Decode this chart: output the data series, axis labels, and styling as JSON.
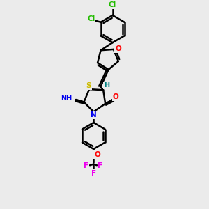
{
  "bg_color": "#ebebeb",
  "bond_color": "#000000",
  "bond_width": 1.8,
  "atom_colors": {
    "Cl": "#22bb00",
    "O": "#ff0000",
    "N": "#0000ee",
    "S": "#ccbb00",
    "H": "#008080",
    "F": "#ee00ee",
    "C": "#000000"
  },
  "layout": {
    "xlim": [
      0,
      10
    ],
    "ylim": [
      0,
      13
    ],
    "figsize": [
      3.0,
      3.0
    ],
    "dpi": 100
  }
}
